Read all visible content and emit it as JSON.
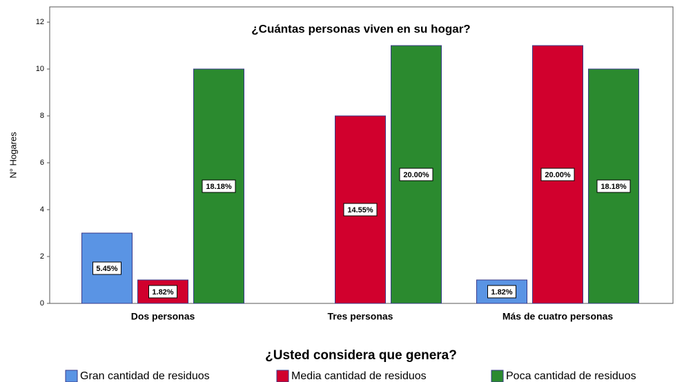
{
  "chart_data": {
    "type": "bar",
    "title": "¿Cuántas personas viven en su hogar?",
    "y_label": "N° Hogares",
    "legend_title": "¿Usted considera que genera?",
    "categories": [
      "Dos personas",
      "Tres personas",
      "Más de cuatro personas"
    ],
    "series": [
      {
        "name": "Gran cantidad de residuos",
        "color": "#5a94e4",
        "values": [
          3,
          null,
          1
        ],
        "percentages": [
          5.45,
          null,
          1.82
        ],
        "percentage_labels": [
          "5.45%",
          null,
          "1.82%"
        ]
      },
      {
        "name": "Media cantidad de residuos",
        "color": "#d1002d",
        "values": [
          1,
          8,
          11
        ],
        "percentages": [
          1.82,
          14.55,
          20.0
        ],
        "percentage_labels": [
          "1.82%",
          "14.55%",
          "20.00%"
        ]
      },
      {
        "name": "Poca cantidad de residuos",
        "color": "#2b8a2f",
        "values": [
          10,
          11,
          10
        ],
        "percentages": [
          18.18,
          20.0,
          18.18
        ],
        "percentage_labels": [
          "18.18%",
          "20.00%",
          "18.18%"
        ]
      }
    ],
    "ylim": [
      0,
      12.65
    ],
    "yticks": [
      0,
      2,
      4,
      6,
      8,
      10,
      12
    ],
    "legend": "bottom"
  }
}
